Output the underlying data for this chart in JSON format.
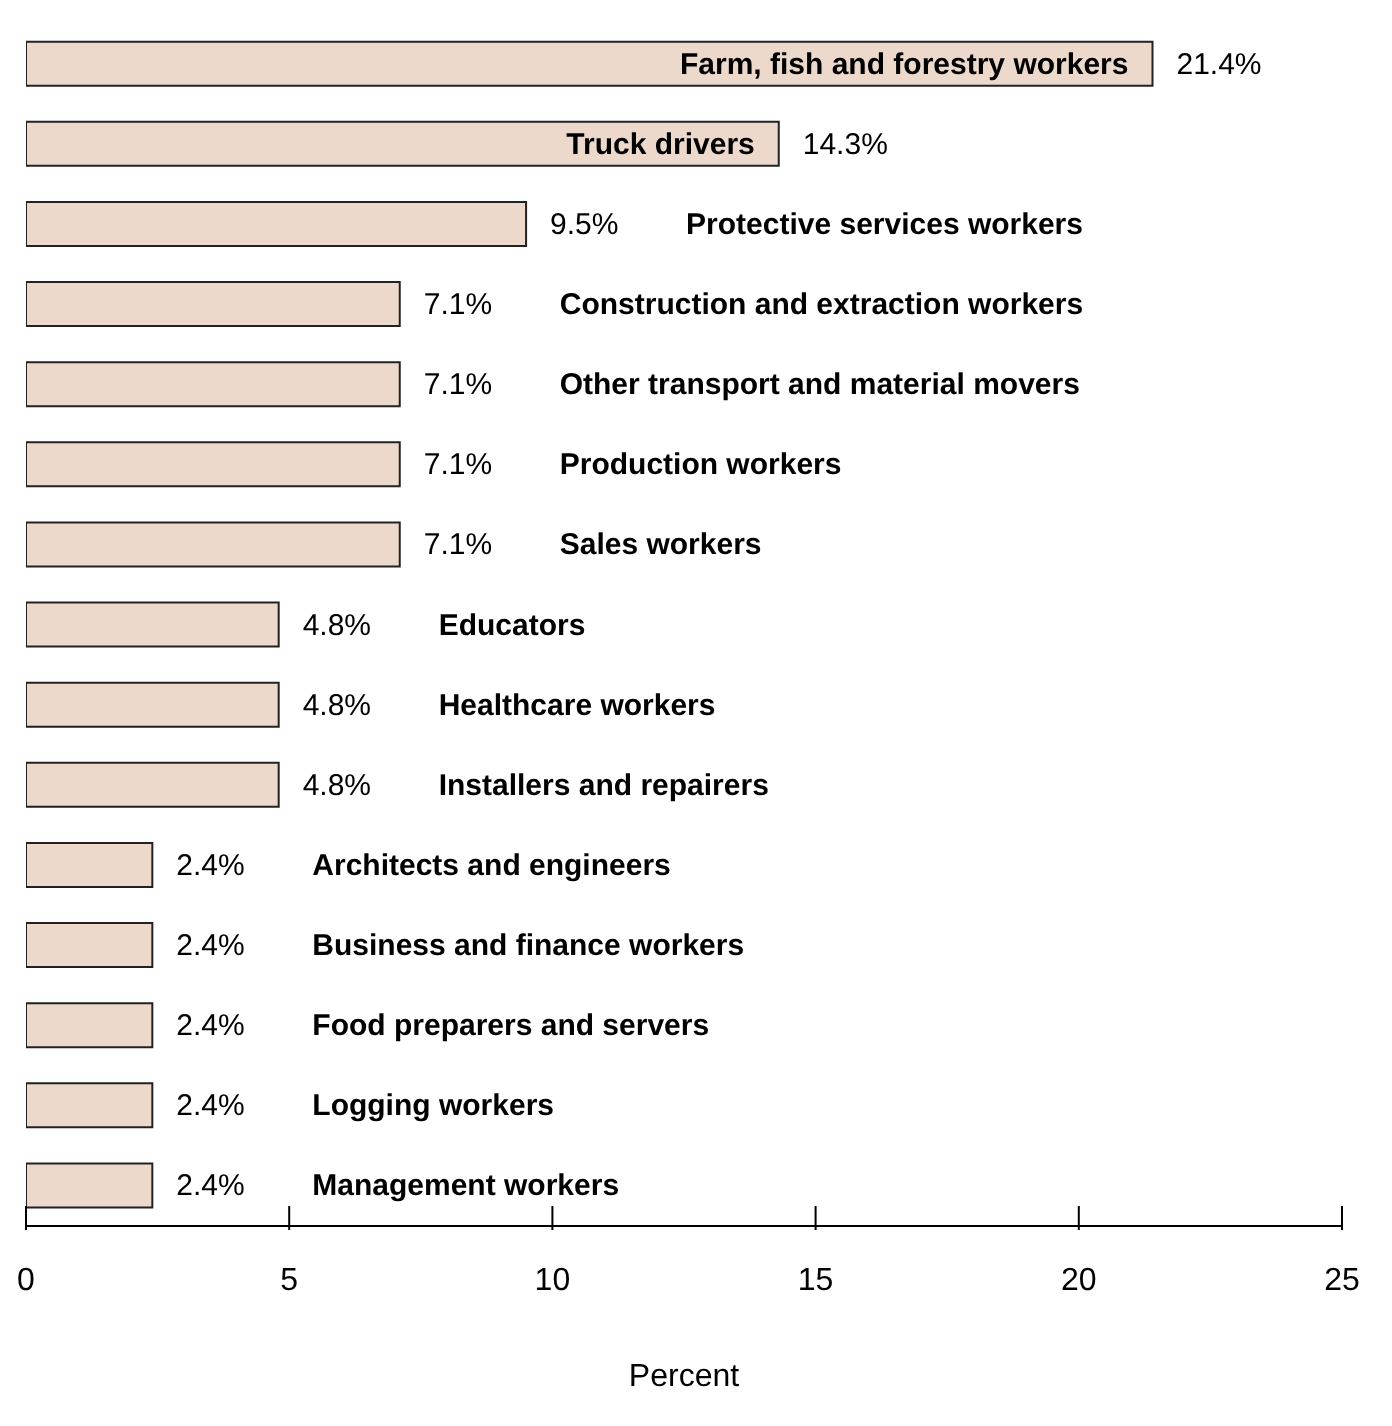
{
  "chart_data": {
    "type": "bar",
    "orientation": "horizontal",
    "categories": [
      "Farm, fish and forestry workers",
      "Truck drivers",
      "Protective services workers",
      "Construction and extraction workers",
      "Other transport and material movers",
      "Production workers",
      "Sales workers",
      "Educators",
      "Healthcare workers",
      "Installers and repairers",
      "Architects and engineers",
      "Business and finance workers",
      "Food preparers and servers",
      "Logging workers",
      "Management workers"
    ],
    "values": [
      21.4,
      14.3,
      9.5,
      7.1,
      7.1,
      7.1,
      7.1,
      4.8,
      4.8,
      4.8,
      2.4,
      2.4,
      2.4,
      2.4,
      2.4
    ],
    "value_labels": [
      "21.4%",
      "14.3%",
      "9.5%",
      "7.1%",
      "7.1%",
      "7.1%",
      "7.1%",
      "4.8%",
      "4.8%",
      "4.8%",
      "2.4%",
      "2.4%",
      "2.4%",
      "2.4%",
      "2.4%"
    ],
    "color": "#ecd9cc",
    "xlim": [
      0,
      25
    ],
    "xticks": [
      0,
      5,
      10,
      15,
      20,
      25
    ],
    "xlabel": "Percent"
  }
}
